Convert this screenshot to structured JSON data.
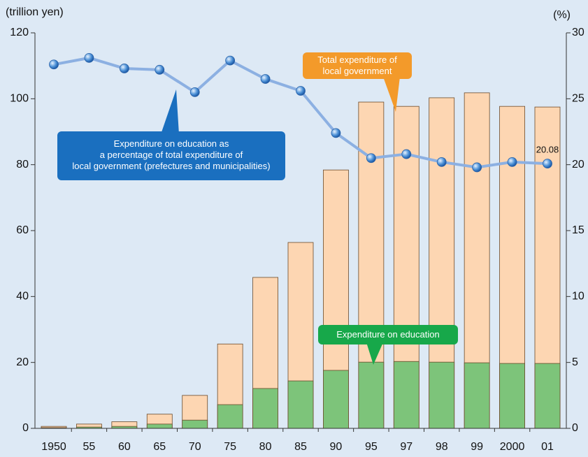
{
  "chart_data": {
    "type": "bar",
    "y_label": "(trillion yen)",
    "y2_label": "(%)",
    "categories": [
      "1950",
      "55",
      "60",
      "65",
      "70",
      "75",
      "80",
      "85",
      "90",
      "95",
      "97",
      "98",
      "99",
      "2000",
      "01"
    ],
    "series": [
      {
        "name": "Total expenditure of\nlocal government",
        "type": "bar",
        "color": "#fdd6b2",
        "values": [
          0.6,
          1.3,
          2.0,
          4.3,
          10.0,
          25.6,
          45.8,
          56.4,
          78.4,
          99.0,
          97.7,
          100.3,
          101.8,
          97.7,
          97.5
        ]
      },
      {
        "name": "Expenditure on education",
        "type": "bar",
        "color": "#7dc47a",
        "values": [
          0.2,
          0.4,
          0.6,
          1.3,
          2.5,
          7.2,
          12.1,
          14.4,
          17.6,
          20.1,
          20.3,
          20.1,
          19.9,
          19.7,
          19.7
        ]
      },
      {
        "name": "Expenditure on education as\na percentage of total expenditure of\nlocal government (prefectures and municipalities)",
        "type": "line",
        "axis": "y2",
        "color": "#8cb0e2",
        "values": [
          27.6,
          28.1,
          27.3,
          27.2,
          25.5,
          27.9,
          26.5,
          25.6,
          22.4,
          20.5,
          20.8,
          20.2,
          19.8,
          20.2,
          20.08
        ]
      }
    ],
    "ylim": [
      0,
      120
    ],
    "yticks": [
      0,
      20,
      40,
      60,
      80,
      100,
      120
    ],
    "y2lim": [
      0,
      30
    ],
    "y2ticks": [
      0,
      5,
      10,
      15,
      20,
      25,
      30
    ]
  }
}
